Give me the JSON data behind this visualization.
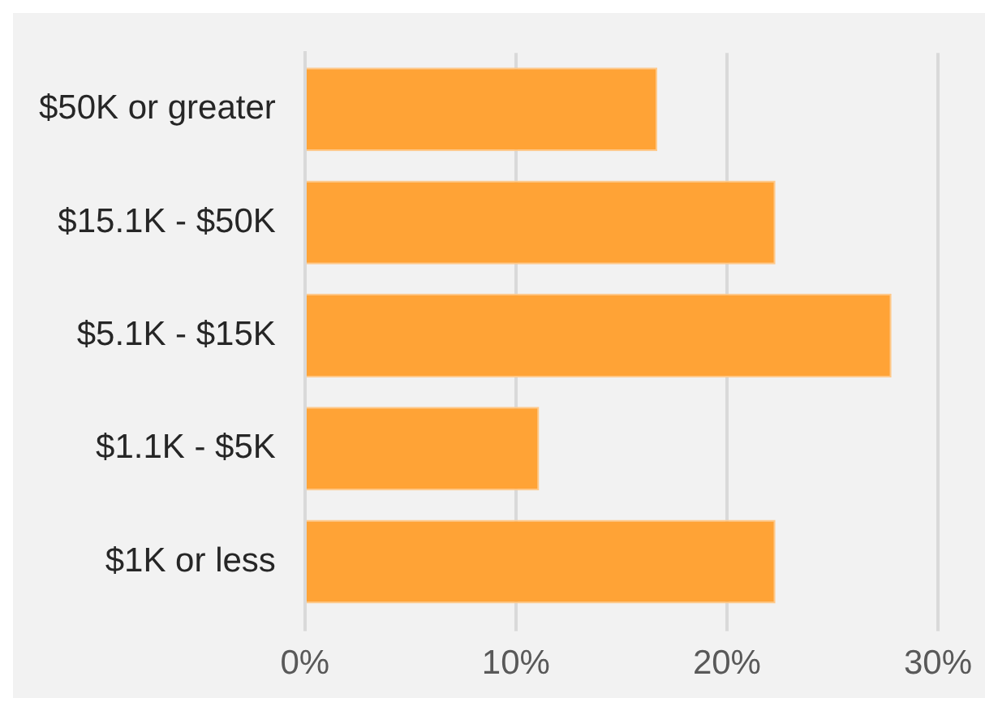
{
  "chart_data": {
    "type": "bar",
    "orientation": "horizontal",
    "categories": [
      "$50K or greater",
      "$15.1K - $50K",
      "$5.1K - $15K",
      "$1.1K - $5K",
      "$1K or less"
    ],
    "values": [
      16.7,
      22.3,
      27.8,
      11.1,
      22.3
    ],
    "color": "#ffa336",
    "xlim": [
      0,
      30
    ],
    "xticks": [
      {
        "value": 0,
        "label": "0%"
      },
      {
        "value": 10,
        "label": "10%"
      },
      {
        "value": 20,
        "label": "20%"
      },
      {
        "value": 30,
        "label": "30%"
      }
    ],
    "grid": "x",
    "legend": false
  }
}
